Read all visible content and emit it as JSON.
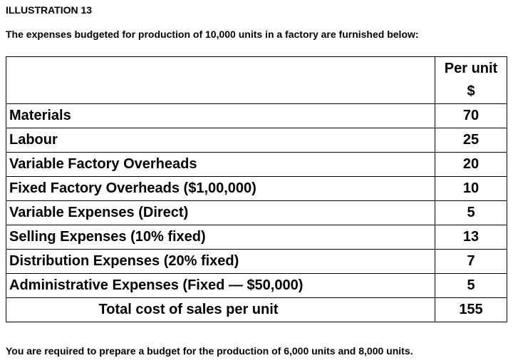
{
  "heading": "ILLUSTRATION 13",
  "intro": "The expenses budgeted for production of 10,000 units in a factory are furnished below:",
  "table": {
    "col_header": "Per unit",
    "col_unit": "$",
    "rows": [
      {
        "label": "Materials",
        "value": "70"
      },
      {
        "label": "Labour",
        "value": "25"
      },
      {
        "label": "Variable Factory Overheads",
        "value": "20"
      },
      {
        "label": "Fixed Factory Overheads ($1,00,000)",
        "value": "10"
      },
      {
        "label": "Variable Expenses (Direct)",
        "value": "5"
      },
      {
        "label": "Selling Expenses (10% fixed)",
        "value": "13"
      },
      {
        "label": "Distribution Expenses (20% fixed)",
        "value": "7"
      },
      {
        "label": "Administrative Expenses (Fixed — $50,000)",
        "value": "5"
      }
    ],
    "total_label": "Total cost of sales per unit",
    "total_value": "155"
  },
  "outro": "You are required to prepare a budget for the production of 6,000 units and 8,000 units."
}
